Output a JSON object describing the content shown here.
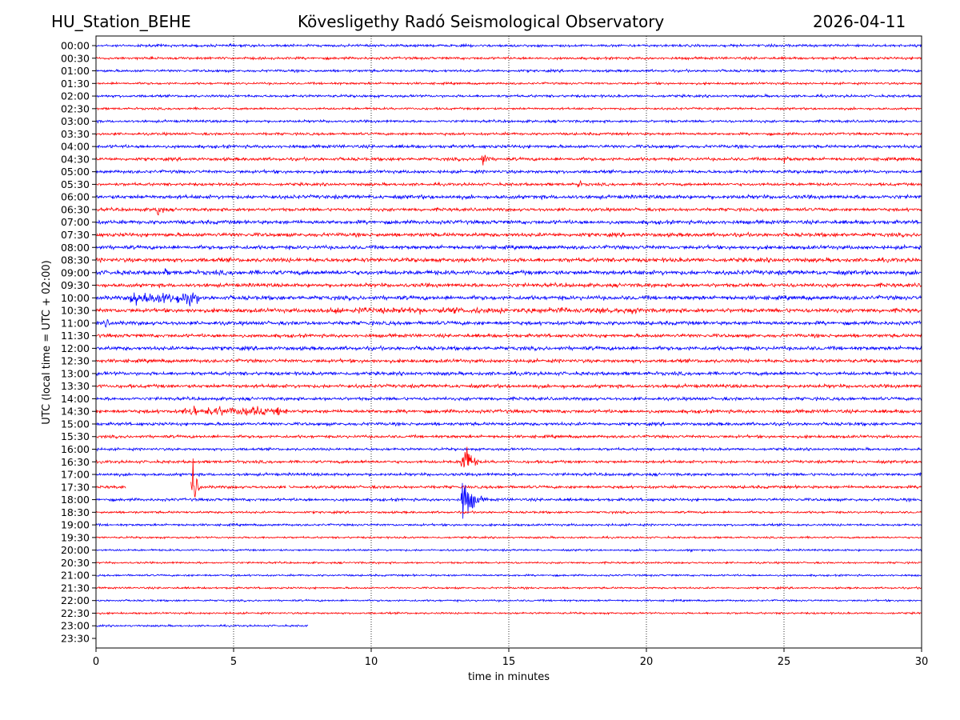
{
  "header": {
    "station": "HU_Station_BEHE",
    "observatory": "Kövesligethy Radó Seismological Observatory",
    "date": "2026-04-11"
  },
  "chart_data": {
    "type": "line",
    "title": "Kövesligethy Radó Seismological Observatory",
    "xlabel": "time in minutes",
    "ylabel": "UTC (local time = UTC + 02:00)",
    "xlim": [
      0,
      30
    ],
    "xticks": [
      "0",
      "5",
      "10",
      "15",
      "20",
      "25",
      "30"
    ],
    "xtick_values": [
      0,
      5,
      10,
      15,
      20,
      25,
      30
    ],
    "grid": "vertical dotted at x ticks",
    "series_colors": [
      "#0000ff",
      "#ff0000"
    ],
    "rows": [
      "00:00",
      "00:30",
      "01:00",
      "01:30",
      "02:00",
      "02:30",
      "03:00",
      "03:30",
      "04:00",
      "04:30",
      "05:00",
      "05:30",
      "06:00",
      "06:30",
      "07:00",
      "07:30",
      "08:00",
      "08:30",
      "09:00",
      "09:30",
      "10:00",
      "10:30",
      "11:00",
      "11:30",
      "12:00",
      "12:30",
      "13:00",
      "13:30",
      "14:00",
      "14:30",
      "15:00",
      "15:30",
      "16:00",
      "16:30",
      "17:00",
      "17:30",
      "18:00",
      "18:30",
      "19:00",
      "19:30",
      "20:00",
      "20:30",
      "21:00",
      "21:30",
      "22:00",
      "22:30",
      "23:00",
      "23:30"
    ],
    "noise_level": [
      0.08,
      0.08,
      0.08,
      0.07,
      0.08,
      0.07,
      0.08,
      0.08,
      0.1,
      0.1,
      0.1,
      0.09,
      0.12,
      0.1,
      0.12,
      0.12,
      0.12,
      0.13,
      0.14,
      0.12,
      0.13,
      0.13,
      0.12,
      0.11,
      0.12,
      0.11,
      0.11,
      0.11,
      0.1,
      0.11,
      0.1,
      0.09,
      0.08,
      0.09,
      0.09,
      0.09,
      0.09,
      0.07,
      0.07,
      0.06,
      0.06,
      0.06,
      0.06,
      0.06,
      0.06,
      0.06,
      0.06,
      0
    ],
    "data_end_minute": {
      "23:00": 7.7,
      "23:30": 0
    },
    "gaps": [
      {
        "row": "17:30",
        "from": 1.1,
        "to": 3.45
      },
      {
        "row": "17:30",
        "from": 6.9,
        "to": 7.0
      }
    ],
    "events": [
      {
        "row": "04:30",
        "minute": 14.0,
        "amplitude": 0.7,
        "duration": 0.5
      },
      {
        "row": "04:30",
        "minute": 25.0,
        "amplitude": 0.25,
        "duration": 1.0
      },
      {
        "row": "05:30",
        "minute": 17.5,
        "amplitude": 0.45,
        "duration": 0.3
      },
      {
        "row": "06:30",
        "minute": 2.2,
        "amplitude": 0.65,
        "duration": 0.5
      },
      {
        "row": "09:00",
        "minute": 2.5,
        "amplitude": 0.4,
        "duration": 0.3
      },
      {
        "row": "10:00",
        "minute": 2.5,
        "amplitude": 0.5,
        "duration": 2.5
      },
      {
        "row": "10:30",
        "minute": 14.0,
        "amplitude": 0.25,
        "duration": 12.0
      },
      {
        "row": "11:00",
        "minute": 0.3,
        "amplitude": 0.5,
        "duration": 0.4
      },
      {
        "row": "14:30",
        "minute": 5.0,
        "amplitude": 0.35,
        "duration": 4.0
      },
      {
        "row": "16:30",
        "minute": 13.3,
        "amplitude": 2.0,
        "duration": 0.6
      },
      {
        "row": "17:30",
        "minute": 3.5,
        "amplitude": 2.1,
        "duration": 0.3
      },
      {
        "row": "18:00",
        "minute": 13.3,
        "amplitude": 1.9,
        "duration": 0.8
      },
      {
        "row": "20:00",
        "minute": 21.5,
        "amplitude": 0.2,
        "duration": 0.4
      }
    ]
  }
}
